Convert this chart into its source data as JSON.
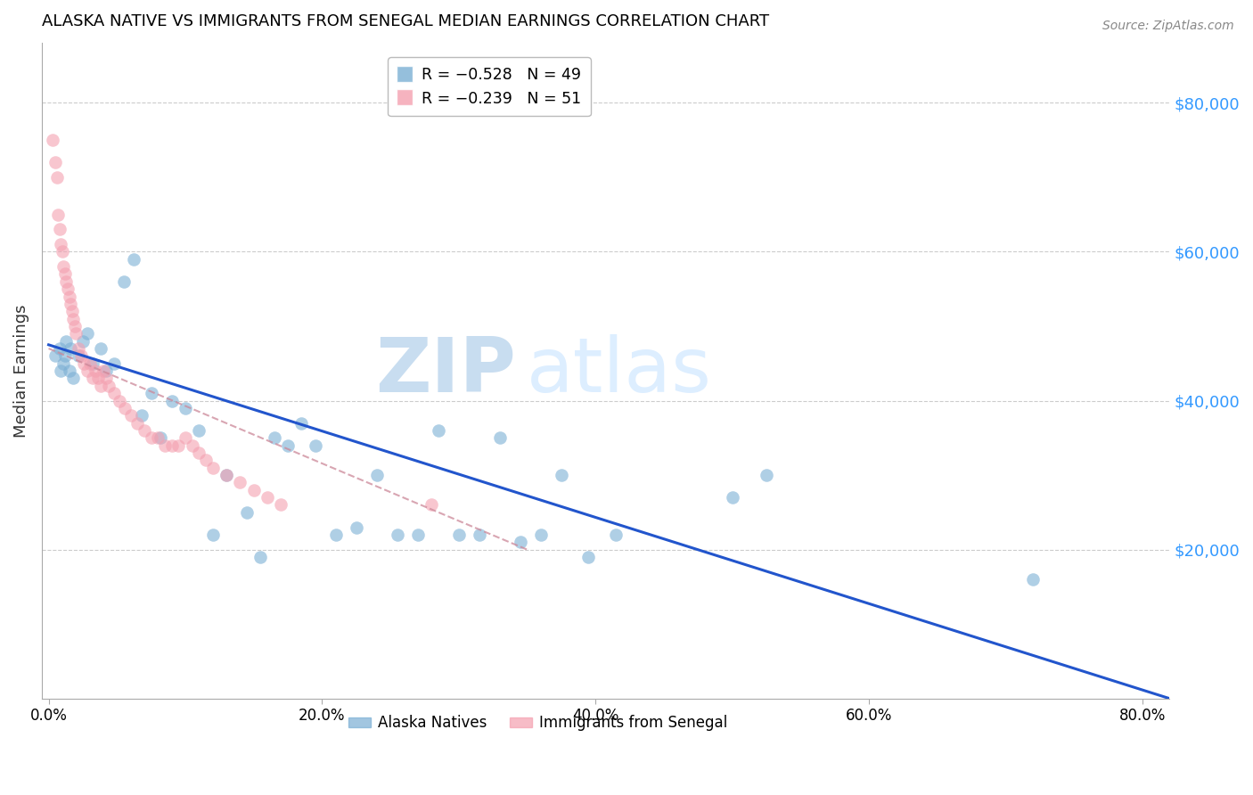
{
  "title": "ALASKA NATIVE VS IMMIGRANTS FROM SENEGAL MEDIAN EARNINGS CORRELATION CHART",
  "source": "Source: ZipAtlas.com",
  "ylabel": "Median Earnings",
  "xlabel_ticks": [
    "0.0%",
    "20.0%",
    "40.0%",
    "60.0%",
    "80.0%"
  ],
  "xlabel_vals": [
    0.0,
    0.2,
    0.4,
    0.6,
    0.8
  ],
  "right_ytick_labels": [
    "$80,000",
    "$60,000",
    "$40,000",
    "$20,000"
  ],
  "right_ytick_vals": [
    80000,
    60000,
    40000,
    20000
  ],
  "ylim": [
    0,
    88000
  ],
  "xlim": [
    -0.005,
    0.82
  ],
  "watermark_zip": "ZIP",
  "watermark_atlas": "atlas",
  "blue_color": "#7bafd4",
  "pink_color": "#f4a0b0",
  "blue_line_color": "#2255cc",
  "pink_line_color": "#cc8899",
  "alaska_natives_x": [
    0.005,
    0.008,
    0.009,
    0.011,
    0.012,
    0.013,
    0.015,
    0.016,
    0.018,
    0.022,
    0.025,
    0.028,
    0.032,
    0.038,
    0.042,
    0.048,
    0.055,
    0.062,
    0.068,
    0.075,
    0.082,
    0.09,
    0.1,
    0.11,
    0.12,
    0.13,
    0.145,
    0.155,
    0.165,
    0.175,
    0.185,
    0.195,
    0.21,
    0.225,
    0.24,
    0.255,
    0.27,
    0.285,
    0.3,
    0.315,
    0.33,
    0.345,
    0.36,
    0.375,
    0.395,
    0.415,
    0.5,
    0.525,
    0.72
  ],
  "alaska_natives_y": [
    46000,
    47000,
    44000,
    45000,
    46000,
    48000,
    44000,
    47000,
    43000,
    46000,
    48000,
    49000,
    45000,
    47000,
    44000,
    45000,
    56000,
    59000,
    38000,
    41000,
    35000,
    40000,
    39000,
    36000,
    22000,
    30000,
    25000,
    19000,
    35000,
    34000,
    37000,
    34000,
    22000,
    23000,
    30000,
    22000,
    22000,
    36000,
    22000,
    22000,
    35000,
    21000,
    22000,
    30000,
    19000,
    22000,
    27000,
    30000,
    16000
  ],
  "senegal_x": [
    0.003,
    0.005,
    0.006,
    0.007,
    0.008,
    0.009,
    0.01,
    0.011,
    0.012,
    0.013,
    0.014,
    0.015,
    0.016,
    0.017,
    0.018,
    0.019,
    0.02,
    0.022,
    0.024,
    0.026,
    0.028,
    0.03,
    0.032,
    0.034,
    0.036,
    0.038,
    0.04,
    0.042,
    0.044,
    0.048,
    0.052,
    0.056,
    0.06,
    0.065,
    0.07,
    0.075,
    0.08,
    0.085,
    0.09,
    0.095,
    0.1,
    0.105,
    0.11,
    0.115,
    0.12,
    0.13,
    0.14,
    0.15,
    0.16,
    0.17,
    0.28
  ],
  "senegal_y": [
    75000,
    72000,
    70000,
    65000,
    63000,
    61000,
    60000,
    58000,
    57000,
    56000,
    55000,
    54000,
    53000,
    52000,
    51000,
    50000,
    49000,
    47000,
    46000,
    45000,
    44000,
    45000,
    43000,
    44000,
    43000,
    42000,
    44000,
    43000,
    42000,
    41000,
    40000,
    39000,
    38000,
    37000,
    36000,
    35000,
    35000,
    34000,
    34000,
    34000,
    35000,
    34000,
    33000,
    32000,
    31000,
    30000,
    29000,
    28000,
    27000,
    26000,
    26000
  ],
  "blue_line_x": [
    0.0,
    0.82
  ],
  "blue_line_y": [
    47500,
    0
  ],
  "pink_line_x": [
    0.0,
    0.35
  ],
  "pink_line_y": [
    47000,
    20000
  ]
}
